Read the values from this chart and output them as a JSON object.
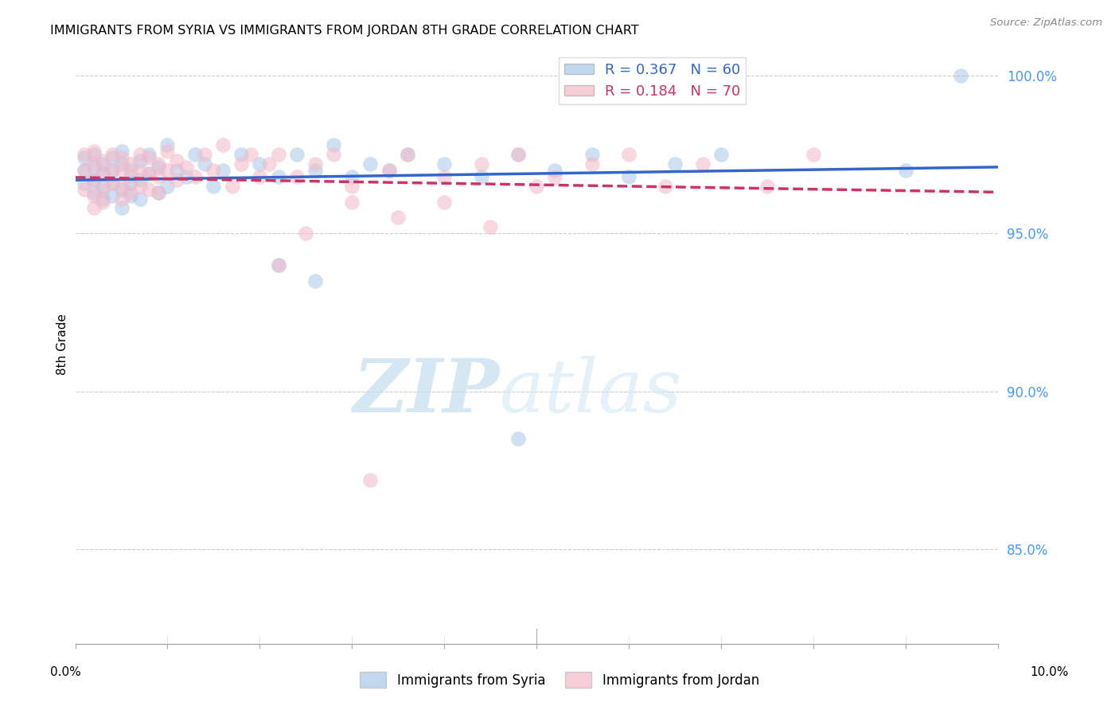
{
  "title": "IMMIGRANTS FROM SYRIA VS IMMIGRANTS FROM JORDAN 8TH GRADE CORRELATION CHART",
  "source": "Source: ZipAtlas.com",
  "ylabel": "8th Grade",
  "y_ticks_pct": [
    85.0,
    90.0,
    95.0,
    100.0
  ],
  "xmin": 0.0,
  "xmax": 0.1,
  "ymin": 0.82,
  "ymax": 1.01,
  "syria_color": "#a8c8e8",
  "jordan_color": "#f4b8c8",
  "syria_line_color": "#3366cc",
  "jordan_line_color": "#cc3366",
  "syria_R": 0.367,
  "syria_N": 60,
  "jordan_R": 0.184,
  "jordan_N": 70,
  "legend_label_syria": "Immigrants from Syria",
  "legend_label_jordan": "Immigrants from Jordan",
  "watermark_zip": "ZIP",
  "watermark_atlas": "atlas",
  "syria_x": [
    0.001,
    0.001,
    0.001,
    0.002,
    0.002,
    0.002,
    0.002,
    0.003,
    0.003,
    0.003,
    0.003,
    0.004,
    0.004,
    0.004,
    0.004,
    0.005,
    0.005,
    0.005,
    0.005,
    0.006,
    0.006,
    0.006,
    0.007,
    0.007,
    0.007,
    0.008,
    0.008,
    0.009,
    0.009,
    0.01,
    0.01,
    0.011,
    0.012,
    0.013,
    0.014,
    0.015,
    0.016,
    0.018,
    0.02,
    0.022,
    0.024,
    0.026,
    0.028,
    0.03,
    0.032,
    0.034,
    0.036,
    0.04,
    0.044,
    0.048,
    0.022,
    0.026,
    0.048,
    0.052,
    0.056,
    0.06,
    0.065,
    0.07,
    0.09,
    0.096
  ],
  "syria_y": [
    0.974,
    0.97,
    0.966,
    0.975,
    0.971,
    0.967,
    0.963,
    0.972,
    0.969,
    0.965,
    0.961,
    0.974,
    0.97,
    0.966,
    0.962,
    0.976,
    0.972,
    0.964,
    0.958,
    0.97,
    0.966,
    0.962,
    0.973,
    0.967,
    0.961,
    0.975,
    0.969,
    0.971,
    0.963,
    0.978,
    0.965,
    0.97,
    0.968,
    0.975,
    0.972,
    0.965,
    0.97,
    0.975,
    0.972,
    0.968,
    0.975,
    0.97,
    0.978,
    0.968,
    0.972,
    0.97,
    0.975,
    0.972,
    0.968,
    0.975,
    0.94,
    0.935,
    0.885,
    0.97,
    0.975,
    0.968,
    0.972,
    0.975,
    0.97,
    1.0
  ],
  "jordan_x": [
    0.001,
    0.001,
    0.001,
    0.002,
    0.002,
    0.002,
    0.002,
    0.002,
    0.003,
    0.003,
    0.003,
    0.003,
    0.004,
    0.004,
    0.004,
    0.005,
    0.005,
    0.005,
    0.005,
    0.006,
    0.006,
    0.006,
    0.007,
    0.007,
    0.007,
    0.008,
    0.008,
    0.008,
    0.009,
    0.009,
    0.009,
    0.01,
    0.01,
    0.011,
    0.011,
    0.012,
    0.013,
    0.014,
    0.015,
    0.016,
    0.017,
    0.018,
    0.019,
    0.02,
    0.021,
    0.022,
    0.024,
    0.026,
    0.028,
    0.03,
    0.032,
    0.034,
    0.036,
    0.04,
    0.044,
    0.048,
    0.052,
    0.056,
    0.06,
    0.064,
    0.068,
    0.03,
    0.035,
    0.04,
    0.045,
    0.05,
    0.022,
    0.025,
    0.08,
    0.075
  ],
  "jordan_y": [
    0.975,
    0.97,
    0.964,
    0.976,
    0.972,
    0.967,
    0.962,
    0.958,
    0.973,
    0.969,
    0.964,
    0.96,
    0.975,
    0.97,
    0.966,
    0.974,
    0.97,
    0.965,
    0.961,
    0.972,
    0.968,
    0.963,
    0.975,
    0.97,
    0.965,
    0.974,
    0.969,
    0.964,
    0.972,
    0.968,
    0.963,
    0.976,
    0.97,
    0.973,
    0.967,
    0.971,
    0.968,
    0.975,
    0.97,
    0.978,
    0.965,
    0.972,
    0.975,
    0.968,
    0.972,
    0.975,
    0.968,
    0.972,
    0.975,
    0.965,
    0.872,
    0.97,
    0.975,
    0.968,
    0.972,
    0.975,
    0.968,
    0.972,
    0.975,
    0.965,
    0.972,
    0.96,
    0.955,
    0.96,
    0.952,
    0.965,
    0.94,
    0.95,
    0.975,
    0.965
  ]
}
